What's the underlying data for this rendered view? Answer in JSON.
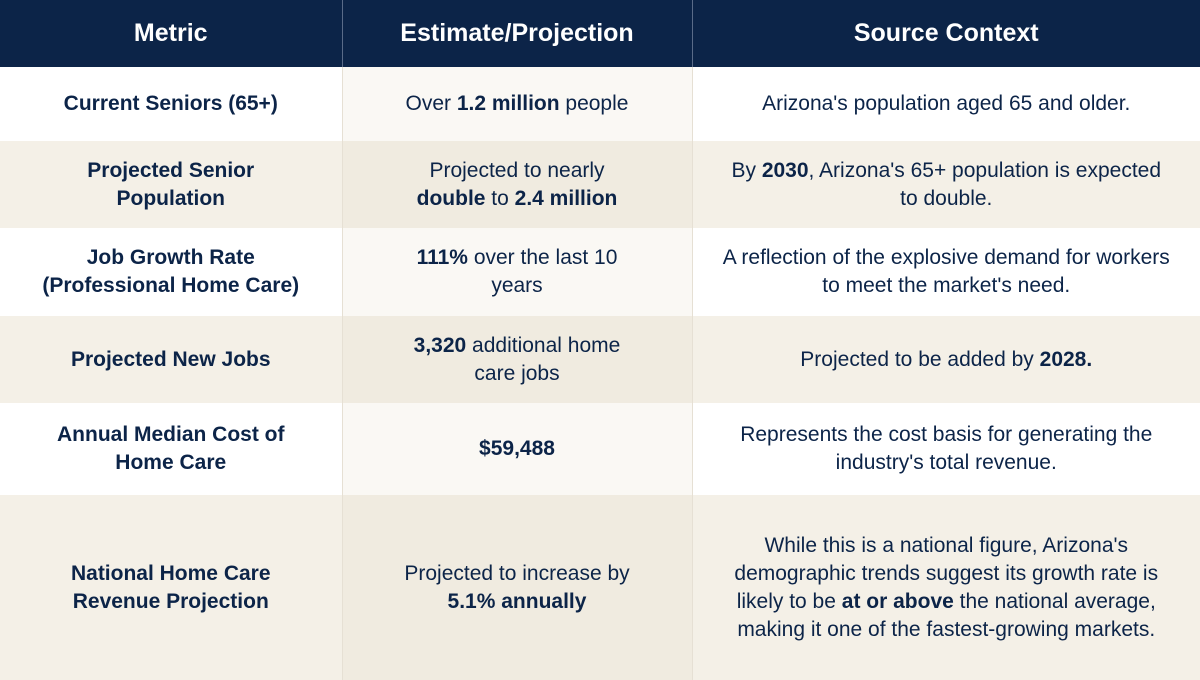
{
  "table": {
    "headers": [
      "Metric",
      "Estimate/Projection",
      "Source Context"
    ],
    "rows": [
      [
        [
          {
            "text": "Current Seniors (65+)",
            "bold": true
          }
        ],
        [
          {
            "text": "Over "
          },
          {
            "text": "1.2 million",
            "bold": true
          },
          {
            "text": " people"
          }
        ],
        [
          {
            "text": "Arizona's population aged 65 and older."
          }
        ]
      ],
      [
        [
          {
            "text": "Projected Senior Population",
            "bold": true
          }
        ],
        [
          {
            "text": "Projected to nearly "
          },
          {
            "text": "double",
            "bold": true
          },
          {
            "text": " to "
          },
          {
            "text": "2.4 million",
            "bold": true
          }
        ],
        [
          {
            "text": "By "
          },
          {
            "text": "2030",
            "bold": true
          },
          {
            "text": ", Arizona's 65+ population is expected to double."
          }
        ]
      ],
      [
        [
          {
            "text": "Job Growth Rate (Professional Home Care)",
            "bold": true
          }
        ],
        [
          {
            "text": "111%",
            "bold": true
          },
          {
            "text": " over the last 10 years"
          }
        ],
        [
          {
            "text": "A reflection of the explosive demand for workers to meet the market's need."
          }
        ]
      ],
      [
        [
          {
            "text": "Projected New Jobs",
            "bold": true
          }
        ],
        [
          {
            "text": "3,320",
            "bold": true
          },
          {
            "text": " additional home care jobs"
          }
        ],
        [
          {
            "text": "Projected to be added by "
          },
          {
            "text": "2028.",
            "bold": true
          }
        ]
      ],
      [
        [
          {
            "text": "Annual Median Cost of Home Care",
            "bold": true
          }
        ],
        [
          {
            "text": "$59,488",
            "bold": true
          }
        ],
        [
          {
            "text": "Represents the cost basis for generating the industry's total revenue."
          }
        ]
      ],
      [
        [
          {
            "text": "National Home Care Revenue Projection",
            "bold": true
          }
        ],
        [
          {
            "text": "Projected to increase by "
          },
          {
            "text": "5.1% annually",
            "bold": true
          }
        ],
        [
          {
            "text": "While this is a national figure, Arizona's demographic trends suggest its growth rate is likely to be "
          },
          {
            "text": "at or above",
            "bold": true
          },
          {
            "text": " the national average, making it one of the fastest-growing markets."
          }
        ]
      ]
    ]
  }
}
